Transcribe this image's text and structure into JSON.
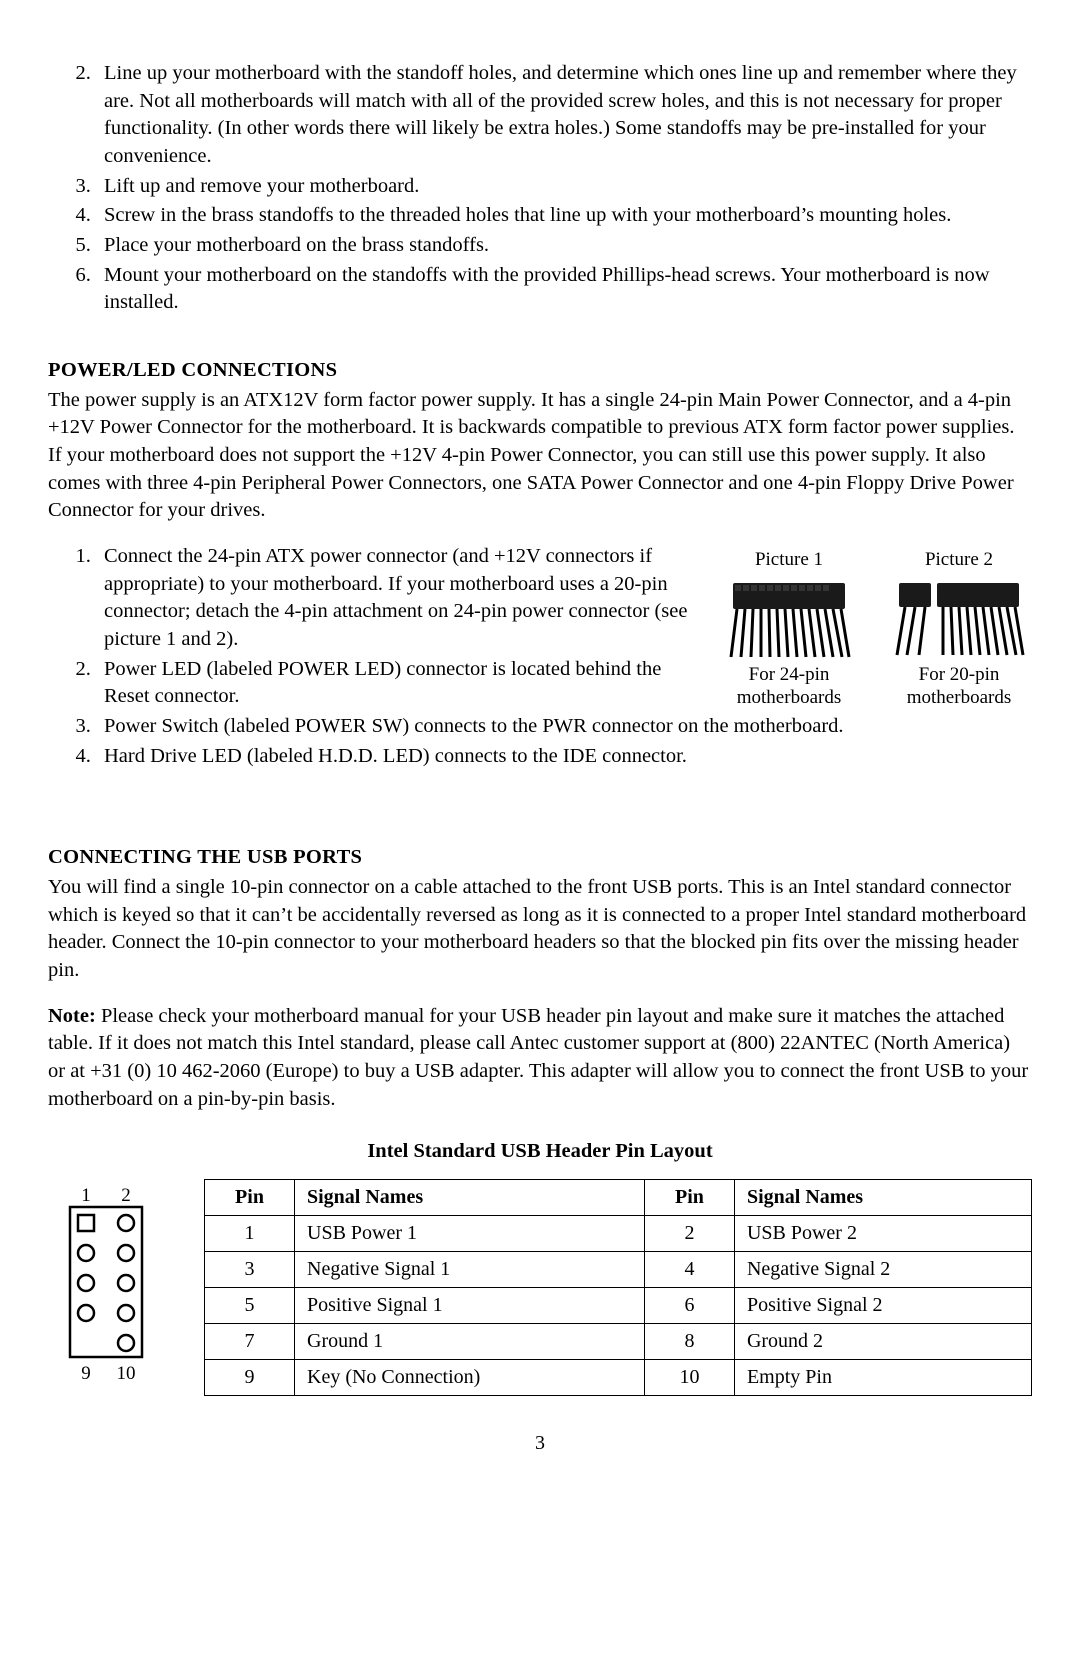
{
  "steps_top": [
    {
      "n": "2",
      "text": "Line up your motherboard with the standoff holes, and determine which ones line up and remember where they are. Not all motherboards will match with all of the provided screw holes, and this is not necessary for proper functionality. (In other words there will likely be extra holes.) Some standoffs may be pre-installed for your convenience."
    },
    {
      "n": "3",
      "text": "Lift up and remove your motherboard."
    },
    {
      "n": "4",
      "text": "Screw in the brass standoffs to the threaded holes that line up with your motherboard’s mounting holes."
    },
    {
      "n": "5",
      "text": "Place your motherboard on the brass standoffs."
    },
    {
      "n": "6",
      "text": "Mount your motherboard on the standoffs with the provided Phillips-head screws. Your motherboard is now installed."
    }
  ],
  "power_led": {
    "heading": "POWER/LED CONNECTIONS",
    "intro": "The power supply is an ATX12V form factor power supply.   It has a single 24-pin Main Power Connector, and a 4-pin +12V Power Connector for the motherboard. It is backwards compatible to previous ATX form factor power supplies. If your motherboard does not support the +12V 4-pin Power Connector, you can still use this power supply. It also comes with three 4-pin Peripheral Power Connectors, one SATA Power Connector and one 4-pin Floppy Drive Power Connector for your drives.",
    "steps": [
      "Connect the 24-pin ATX power connector (and +12V connectors if appropriate) to your motherboard. If your motherboard uses a 20-pin connector; detach the 4-pin attachment on 24-pin power connector (see picture 1 and 2).",
      "Power LED (labeled POWER LED) connector is located behind the Reset connector.",
      "Power Switch (labeled POWER SW) connects to the PWR connector on the motherboard.",
      "Hard Drive LED (labeled H.D.D. LED) connects to the IDE connector."
    ],
    "pic1_label": "Picture 1",
    "pic1_caption": "For 24-pin motherboards",
    "pic2_label": "Picture 2",
    "pic2_caption": "For 20-pin motherboards"
  },
  "usb": {
    "heading": "CONNECTING THE USB PORTS",
    "intro": "You will find a single 10-pin connector on a cable attached to the front USB ports. This is an Intel standard connector which is keyed so that it can’t be accidentally reversed as long as it is connected to a proper Intel standard motherboard header. Connect the 10-pin connector to your motherboard headers so that the blocked pin fits over the missing header pin.",
    "note_label": "Note:",
    "note_text": " Please check your motherboard manual for your USB header pin layout and make sure it matches the attached table. If it does not match this Intel standard, please call Antec customer support at (800) 22ANTEC (North America) or at +31 (0) 10 462-2060 (Europe) to buy a USB adapter. This adapter will allow you to connect the front USB to your motherboard on a pin-by-pin basis."
  },
  "usb_table": {
    "title": "Intel Standard USB Header Pin Layout",
    "headers": [
      "Pin",
      "Signal Names",
      "Pin",
      "Signal Names"
    ],
    "rows": [
      [
        "1",
        "USB Power 1",
        "2",
        "USB Power 2"
      ],
      [
        "3",
        "Negative Signal 1",
        "4",
        "Negative Signal 2"
      ],
      [
        "5",
        "Positive Signal 1",
        "6",
        "Positive Signal 2"
      ],
      [
        "7",
        "Ground 1",
        "8",
        "Ground 2"
      ],
      [
        "9",
        "Key (No Connection)",
        "10",
        "Empty Pin"
      ]
    ]
  },
  "pin_diagram": {
    "top_left": "1",
    "top_right": "2",
    "bot_left": "9",
    "bot_right": "10",
    "rows": 5,
    "pin1_shape": "square",
    "missing_pin": [
      4,
      0
    ]
  },
  "page_number": "3"
}
